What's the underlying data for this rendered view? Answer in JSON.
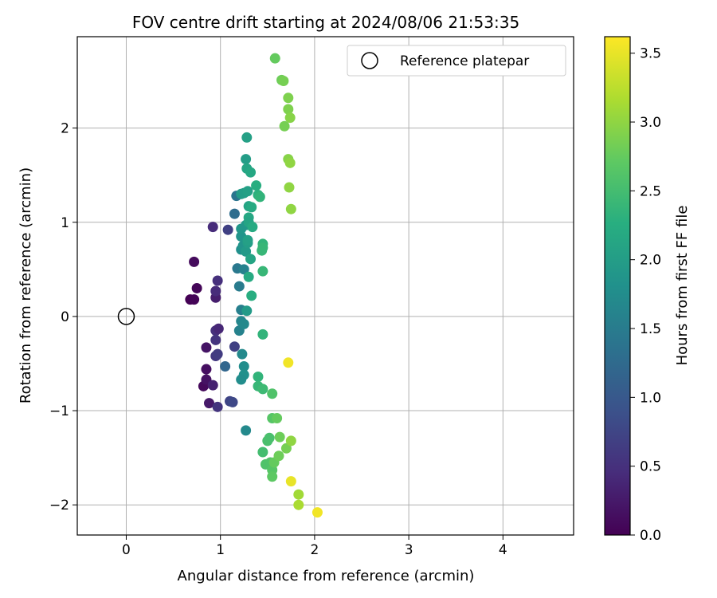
{
  "chart_data": {
    "type": "scatter",
    "title": "FOV centre drift starting at 2024/08/06 21:53:35",
    "xlabel": "Angular distance from reference (arcmin)",
    "ylabel": "Rotation from reference (arcmin)",
    "xlim": [
      -0.52,
      4.75
    ],
    "ylim": [
      -2.32,
      2.97
    ],
    "xticks": [
      "0",
      "1",
      "2",
      "3",
      "4"
    ],
    "yticks": [
      "−2",
      "−1",
      "0",
      "1",
      "2"
    ],
    "grid": true,
    "legend": {
      "placement": "top-right",
      "entries": [
        "Reference platepar"
      ]
    },
    "reference": {
      "x": 0,
      "y": 0,
      "marker": "open-circle"
    },
    "colorbar": {
      "label": "Hours from first FF file",
      "range": [
        0,
        3.62
      ],
      "ticks": [
        "0.0",
        "0.5",
        "1.0",
        "1.5",
        "2.0",
        "2.5",
        "3.0",
        "3.5"
      ],
      "colormap": "viridis"
    },
    "points": [
      {
        "x": 0.68,
        "y": 0.18,
        "c": 0.0
      },
      {
        "x": 0.72,
        "y": 0.18,
        "c": 0.03
      },
      {
        "x": 0.75,
        "y": 0.3,
        "c": 0.05
      },
      {
        "x": 0.72,
        "y": 0.58,
        "c": 0.1
      },
      {
        "x": 0.82,
        "y": -0.74,
        "c": 0.08
      },
      {
        "x": 0.85,
        "y": -0.56,
        "c": 0.15
      },
      {
        "x": 0.85,
        "y": -0.67,
        "c": 0.18
      },
      {
        "x": 0.85,
        "y": -0.33,
        "c": 0.2
      },
      {
        "x": 0.88,
        "y": -0.92,
        "c": 0.25
      },
      {
        "x": 0.92,
        "y": -0.73,
        "c": 0.35
      },
      {
        "x": 0.95,
        "y": 0.2,
        "c": 0.3
      },
      {
        "x": 0.95,
        "y": 0.27,
        "c": 0.45
      },
      {
        "x": 0.97,
        "y": 0.38,
        "c": 0.5
      },
      {
        "x": 0.92,
        "y": 0.95,
        "c": 0.45
      },
      {
        "x": 0.95,
        "y": -0.15,
        "c": 0.5
      },
      {
        "x": 0.98,
        "y": -0.13,
        "c": 0.4
      },
      {
        "x": 0.95,
        "y": -0.25,
        "c": 0.55
      },
      {
        "x": 0.95,
        "y": -0.42,
        "c": 0.6
      },
      {
        "x": 0.97,
        "y": -0.4,
        "c": 0.65
      },
      {
        "x": 0.97,
        "y": -0.96,
        "c": 0.55
      },
      {
        "x": 1.08,
        "y": 0.92,
        "c": 0.7
      },
      {
        "x": 1.1,
        "y": -0.9,
        "c": 0.75
      },
      {
        "x": 1.13,
        "y": -0.91,
        "c": 0.8
      },
      {
        "x": 1.15,
        "y": -0.32,
        "c": 0.7
      },
      {
        "x": 1.05,
        "y": -0.53,
        "c": 1.2
      },
      {
        "x": 1.15,
        "y": 1.09,
        "c": 1.3
      },
      {
        "x": 1.17,
        "y": 1.28,
        "c": 1.4
      },
      {
        "x": 1.18,
        "y": 0.51,
        "c": 1.45
      },
      {
        "x": 1.2,
        "y": 0.32,
        "c": 1.5
      },
      {
        "x": 1.22,
        "y": 0.07,
        "c": 1.55
      },
      {
        "x": 1.2,
        "y": -0.15,
        "c": 1.6
      },
      {
        "x": 1.22,
        "y": -0.05,
        "c": 1.65
      },
      {
        "x": 1.25,
        "y": -0.08,
        "c": 1.7
      },
      {
        "x": 1.23,
        "y": -0.4,
        "c": 1.7
      },
      {
        "x": 1.25,
        "y": -0.53,
        "c": 1.75
      },
      {
        "x": 1.25,
        "y": -0.62,
        "c": 1.8
      },
      {
        "x": 1.22,
        "y": -0.67,
        "c": 1.75
      },
      {
        "x": 1.27,
        "y": -1.21,
        "c": 1.7
      },
      {
        "x": 1.22,
        "y": 0.71,
        "c": 1.8
      },
      {
        "x": 1.22,
        "y": 0.85,
        "c": 1.85
      },
      {
        "x": 1.22,
        "y": 0.93,
        "c": 1.9
      },
      {
        "x": 1.24,
        "y": 0.75,
        "c": 1.85
      },
      {
        "x": 1.25,
        "y": 0.5,
        "c": 1.6
      },
      {
        "x": 1.27,
        "y": 0.97,
        "c": 1.9
      },
      {
        "x": 1.28,
        "y": 0.06,
        "c": 1.95
      },
      {
        "x": 1.27,
        "y": 0.69,
        "c": 1.95
      },
      {
        "x": 1.29,
        "y": 0.78,
        "c": 2.0
      },
      {
        "x": 1.29,
        "y": 0.81,
        "c": 2.05
      },
      {
        "x": 1.32,
        "y": 0.61,
        "c": 2.1
      },
      {
        "x": 1.3,
        "y": 0.42,
        "c": 2.2
      },
      {
        "x": 1.33,
        "y": 0.22,
        "c": 2.25
      },
      {
        "x": 1.22,
        "y": 1.3,
        "c": 1.95
      },
      {
        "x": 1.25,
        "y": 1.31,
        "c": 2.0
      },
      {
        "x": 1.27,
        "y": 1.67,
        "c": 2.0
      },
      {
        "x": 1.28,
        "y": 1.9,
        "c": 2.05
      },
      {
        "x": 1.28,
        "y": 1.57,
        "c": 2.1
      },
      {
        "x": 1.29,
        "y": 1.33,
        "c": 2.05
      },
      {
        "x": 1.3,
        "y": 1.17,
        "c": 2.1
      },
      {
        "x": 1.3,
        "y": 1.05,
        "c": 2.15
      },
      {
        "x": 1.3,
        "y": 1.0,
        "c": 2.1
      },
      {
        "x": 1.32,
        "y": 1.53,
        "c": 2.15
      },
      {
        "x": 1.33,
        "y": 1.16,
        "c": 2.2
      },
      {
        "x": 1.34,
        "y": 0.95,
        "c": 2.2
      },
      {
        "x": 1.38,
        "y": 1.39,
        "c": 2.25
      },
      {
        "x": 1.4,
        "y": 1.29,
        "c": 2.3
      },
      {
        "x": 1.42,
        "y": 1.27,
        "c": 2.35
      },
      {
        "x": 1.45,
        "y": 0.77,
        "c": 2.35
      },
      {
        "x": 1.45,
        "y": 0.73,
        "c": 2.4
      },
      {
        "x": 1.44,
        "y": 0.7,
        "c": 2.4
      },
      {
        "x": 1.45,
        "y": 0.48,
        "c": 2.4
      },
      {
        "x": 1.45,
        "y": -0.19,
        "c": 2.35
      },
      {
        "x": 1.4,
        "y": -0.64,
        "c": 2.35
      },
      {
        "x": 1.4,
        "y": -0.74,
        "c": 2.4
      },
      {
        "x": 1.45,
        "y": -0.77,
        "c": 2.45
      },
      {
        "x": 1.45,
        "y": -1.44,
        "c": 2.5
      },
      {
        "x": 1.5,
        "y": -1.32,
        "c": 2.55
      },
      {
        "x": 1.52,
        "y": -1.29,
        "c": 2.55
      },
      {
        "x": 1.48,
        "y": -1.57,
        "c": 2.6
      },
      {
        "x": 1.53,
        "y": -1.55,
        "c": 2.6
      },
      {
        "x": 1.55,
        "y": -1.63,
        "c": 2.65
      },
      {
        "x": 1.55,
        "y": -1.7,
        "c": 2.7
      },
      {
        "x": 1.57,
        "y": -1.55,
        "c": 2.75
      },
      {
        "x": 1.55,
        "y": -0.82,
        "c": 2.6
      },
      {
        "x": 1.55,
        "y": -1.08,
        "c": 2.65
      },
      {
        "x": 1.6,
        "y": -1.08,
        "c": 2.75
      },
      {
        "x": 1.62,
        "y": -1.48,
        "c": 2.8
      },
      {
        "x": 1.63,
        "y": -1.28,
        "c": 2.8
      },
      {
        "x": 1.7,
        "y": -1.4,
        "c": 2.85
      },
      {
        "x": 1.75,
        "y": -1.32,
        "c": 3.0
      },
      {
        "x": 1.58,
        "y": 2.74,
        "c": 2.75
      },
      {
        "x": 1.65,
        "y": 2.51,
        "c": 2.8
      },
      {
        "x": 1.67,
        "y": 2.5,
        "c": 2.85
      },
      {
        "x": 1.68,
        "y": 2.02,
        "c": 2.85
      },
      {
        "x": 1.72,
        "y": 2.32,
        "c": 2.9
      },
      {
        "x": 1.72,
        "y": 2.2,
        "c": 2.9
      },
      {
        "x": 1.74,
        "y": 2.11,
        "c": 2.95
      },
      {
        "x": 1.72,
        "y": 1.67,
        "c": 2.95
      },
      {
        "x": 1.74,
        "y": 1.63,
        "c": 3.0
      },
      {
        "x": 1.73,
        "y": 1.37,
        "c": 3.0
      },
      {
        "x": 1.75,
        "y": 1.14,
        "c": 3.0
      },
      {
        "x": 1.72,
        "y": -0.49,
        "c": 3.55
      },
      {
        "x": 1.75,
        "y": -1.75,
        "c": 3.5
      },
      {
        "x": 1.83,
        "y": -1.89,
        "c": 3.1
      },
      {
        "x": 1.83,
        "y": -2.0,
        "c": 3.15
      },
      {
        "x": 2.03,
        "y": -2.08,
        "c": 3.55
      }
    ]
  }
}
